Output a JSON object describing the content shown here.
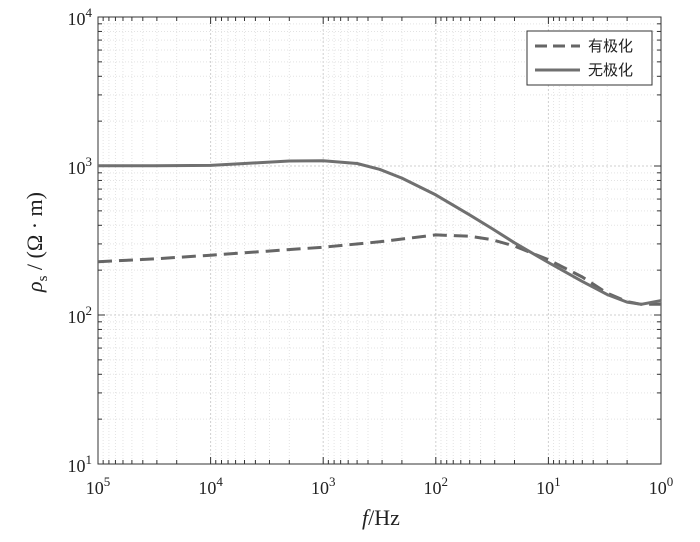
{
  "chart_data": {
    "type": "line",
    "xscale": "log",
    "yscale": "log",
    "x_reversed": true,
    "xlim": [
      100000,
      1
    ],
    "ylim": [
      10,
      10000
    ],
    "grid": true,
    "legend_position": "top-right",
    "xlabel_italic": "f",
    "xlabel_unit": "/Hz",
    "ylabel_symbol": "ρ",
    "ylabel_sub": "s",
    "ylabel_unit": " / (Ω · m)",
    "x_ticks": [
      {
        "base": "10",
        "exp": "5",
        "value": 100000
      },
      {
        "base": "10",
        "exp": "4",
        "value": 10000
      },
      {
        "base": "10",
        "exp": "3",
        "value": 1000
      },
      {
        "base": "10",
        "exp": "2",
        "value": 100
      },
      {
        "base": "10",
        "exp": "1",
        "value": 10
      },
      {
        "base": "10",
        "exp": "0",
        "value": 1
      }
    ],
    "y_ticks": [
      {
        "base": "10",
        "exp": "1",
        "value": 10
      },
      {
        "base": "10",
        "exp": "2",
        "value": 100
      },
      {
        "base": "10",
        "exp": "3",
        "value": 1000
      },
      {
        "base": "10",
        "exp": "4",
        "value": 10000
      }
    ],
    "series": [
      {
        "name": "有极化",
        "style": "dashed",
        "color": "#666666",
        "points": [
          [
            100000,
            228
          ],
          [
            31623,
            238
          ],
          [
            10000,
            252
          ],
          [
            3162,
            268
          ],
          [
            1000,
            285
          ],
          [
            316,
            310
          ],
          [
            100,
            345
          ],
          [
            50,
            338
          ],
          [
            31.6,
            320
          ],
          [
            20,
            290
          ],
          [
            10,
            235
          ],
          [
            5,
            180
          ],
          [
            3,
            140
          ],
          [
            2,
            123
          ],
          [
            1.5,
            118
          ],
          [
            1,
            118
          ]
        ]
      },
      {
        "name": "无极化",
        "style": "solid",
        "color": "#707070",
        "points": [
          [
            100000,
            1005
          ],
          [
            31623,
            1005
          ],
          [
            10000,
            1010
          ],
          [
            5000,
            1040
          ],
          [
            2000,
            1080
          ],
          [
            1000,
            1085
          ],
          [
            500,
            1040
          ],
          [
            316,
            950
          ],
          [
            200,
            830
          ],
          [
            100,
            640
          ],
          [
            50,
            470
          ],
          [
            31.6,
            380
          ],
          [
            20,
            305
          ],
          [
            10,
            225
          ],
          [
            5,
            168
          ],
          [
            3,
            137
          ],
          [
            2,
            122
          ],
          [
            1.5,
            118
          ],
          [
            1,
            125
          ]
        ]
      }
    ]
  }
}
